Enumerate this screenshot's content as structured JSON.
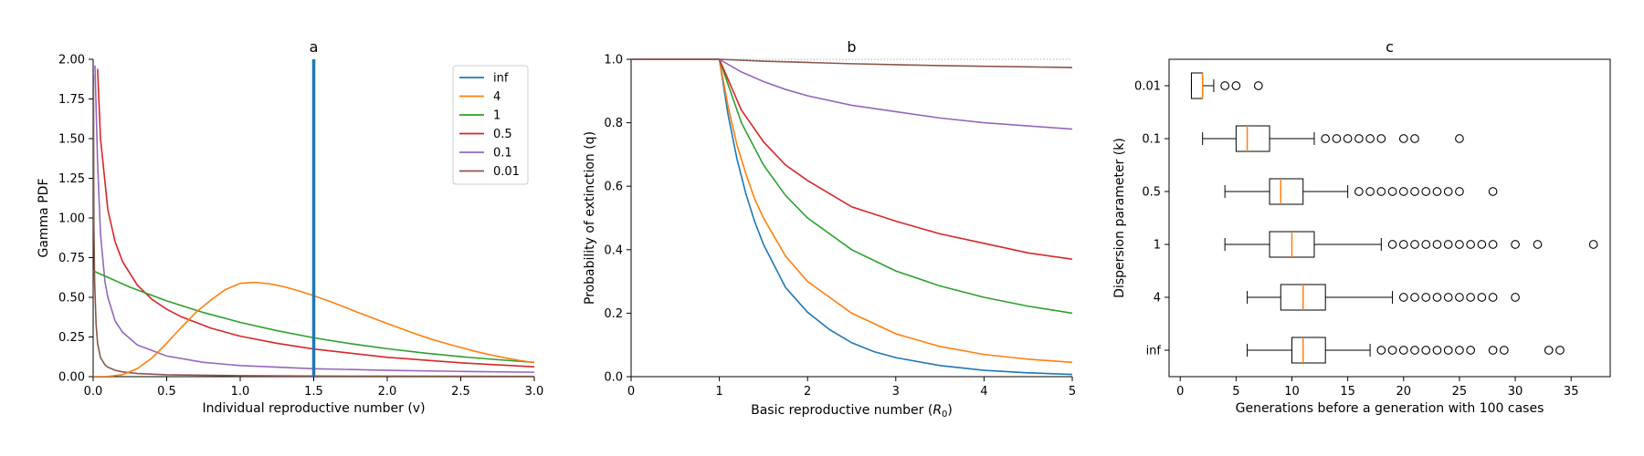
{
  "colors": {
    "inf": "#1f77b4",
    "4": "#ff7f0e",
    "1": "#2ca02c",
    "0.5": "#d62728",
    "0.1": "#9467bd",
    "0.01": "#8c564b",
    "median": "#ff7f0e",
    "reference_line": "#b0b0b0"
  },
  "chart_data": [
    {
      "id": "a",
      "type": "line",
      "title": "a",
      "xlabel": "Individual reproductive number (v)",
      "ylabel": "Gamma PDF",
      "xlim": [
        0,
        3
      ],
      "ylim": [
        0,
        2
      ],
      "xticks": [
        "0.0",
        "0.5",
        "1.0",
        "1.5",
        "2.0",
        "2.5",
        "3.0"
      ],
      "yticks": [
        "0.00",
        "0.25",
        "0.50",
        "0.75",
        "1.00",
        "1.25",
        "1.50",
        "1.75",
        "2.00"
      ],
      "legend_position": "top-right",
      "series": [
        {
          "name": "inf",
          "kind": "vertical_line",
          "x": 1.5
        },
        {
          "name": "4",
          "x": [
            0,
            0.1,
            0.2,
            0.3,
            0.4,
            0.5,
            0.6,
            0.7,
            0.8,
            0.9,
            1.0,
            1.1,
            1.2,
            1.3,
            1.4,
            1.5,
            1.6,
            1.7,
            1.8,
            1.9,
            2.0,
            2.1,
            2.2,
            2.3,
            2.4,
            2.5,
            2.6,
            2.7,
            2.8,
            2.9,
            3.0
          ],
          "y": [
            0,
            0.0009,
            0.0125,
            0.05,
            0.118,
            0.21,
            0.311,
            0.406,
            0.483,
            0.549,
            0.588,
            0.594,
            0.585,
            0.566,
            0.54,
            0.51,
            0.478,
            0.442,
            0.405,
            0.37,
            0.335,
            0.301,
            0.267,
            0.236,
            0.209,
            0.184,
            0.159,
            0.138,
            0.119,
            0.102,
            0.089
          ]
        },
        {
          "name": "1",
          "x": [
            0,
            0.25,
            0.5,
            0.75,
            1.0,
            1.25,
            1.5,
            1.75,
            2.0,
            2.25,
            2.5,
            2.75,
            3.0
          ],
          "y": [
            0.667,
            0.564,
            0.478,
            0.404,
            0.342,
            0.29,
            0.245,
            0.208,
            0.176,
            0.149,
            0.126,
            0.107,
            0.09
          ]
        },
        {
          "name": "0.5",
          "x": [
            0.03,
            0.05,
            0.1,
            0.15,
            0.2,
            0.3,
            0.4,
            0.5,
            0.6,
            0.8,
            1.0,
            1.25,
            1.5,
            2.0,
            2.5,
            3.0
          ],
          "y": [
            1.94,
            1.5,
            1.05,
            0.848,
            0.725,
            0.577,
            0.487,
            0.425,
            0.377,
            0.306,
            0.255,
            0.21,
            0.174,
            0.122,
            0.087,
            0.062
          ]
        },
        {
          "name": "0.1",
          "x": [
            0.012,
            0.02,
            0.03,
            0.05,
            0.08,
            0.1,
            0.15,
            0.2,
            0.3,
            0.5,
            0.75,
            1.0,
            1.5,
            2.0,
            2.5,
            3.0
          ],
          "y": [
            1.96,
            1.7,
            1.35,
            0.9,
            0.6,
            0.5,
            0.35,
            0.28,
            0.2,
            0.13,
            0.09,
            0.07,
            0.05,
            0.04,
            0.033,
            0.028
          ]
        },
        {
          "name": "0.01",
          "x": [
            0.002,
            0.005,
            0.01,
            0.02,
            0.03,
            0.05,
            0.08,
            0.1,
            0.15,
            0.2,
            0.3,
            0.5,
            1.0,
            1.5,
            2.0,
            2.5,
            3.0
          ],
          "y": [
            1.9,
            0.95,
            0.6,
            0.33,
            0.21,
            0.12,
            0.075,
            0.06,
            0.04,
            0.03,
            0.02,
            0.012,
            0.006,
            0.004,
            0.003,
            0.0025,
            0.002
          ]
        }
      ]
    },
    {
      "id": "b",
      "type": "line",
      "title": "b",
      "xlabel_prefix": "Basic reproductive number (",
      "xlabel_symbol": "R",
      "xlabel_sub": "0",
      "xlabel_suffix": ")",
      "ylabel": "Probability of extinction (q)",
      "xlim": [
        0,
        5
      ],
      "ylim": [
        0,
        1
      ],
      "xticks": [
        "0",
        "1",
        "2",
        "3",
        "4",
        "5"
      ],
      "yticks": [
        "0.0",
        "0.2",
        "0.4",
        "0.6",
        "0.8",
        "1.0"
      ],
      "reference_line_y": 1.0,
      "series": [
        {
          "name": "inf",
          "x": [
            0,
            1.0,
            1.1,
            1.2,
            1.3,
            1.4,
            1.5,
            1.75,
            2.0,
            2.25,
            2.5,
            2.75,
            3.0,
            3.5,
            4.0,
            4.5,
            5.0
          ],
          "y": [
            1,
            1,
            0.824,
            0.686,
            0.577,
            0.489,
            0.417,
            0.281,
            0.203,
            0.148,
            0.107,
            0.079,
            0.06,
            0.035,
            0.02,
            0.012,
            0.007
          ]
        },
        {
          "name": "4",
          "x": [
            0,
            1.0,
            1.1,
            1.2,
            1.3,
            1.4,
            1.5,
            1.75,
            2.0,
            2.5,
            3.0,
            3.5,
            4.0,
            4.5,
            5.0
          ],
          "y": [
            1,
            1,
            0.85,
            0.73,
            0.64,
            0.56,
            0.5,
            0.38,
            0.3,
            0.2,
            0.135,
            0.095,
            0.07,
            0.055,
            0.045
          ]
        },
        {
          "name": "1",
          "x": [
            0,
            1.0,
            1.25,
            1.5,
            1.75,
            2.0,
            2.5,
            3.0,
            3.5,
            4.0,
            4.5,
            5.0
          ],
          "y": [
            1,
            1,
            0.8,
            0.667,
            0.571,
            0.5,
            0.4,
            0.333,
            0.286,
            0.25,
            0.222,
            0.2
          ]
        },
        {
          "name": "0.5",
          "x": [
            0,
            1.0,
            1.25,
            1.5,
            1.75,
            2.0,
            2.5,
            3.0,
            3.5,
            4.0,
            4.5,
            5.0
          ],
          "y": [
            1,
            1,
            0.84,
            0.74,
            0.667,
            0.618,
            0.535,
            0.49,
            0.45,
            0.42,
            0.39,
            0.37
          ]
        },
        {
          "name": "0.1",
          "x": [
            0,
            1.0,
            1.25,
            1.5,
            1.75,
            2.0,
            2.5,
            3.0,
            3.5,
            4.0,
            4.5,
            5.0
          ],
          "y": [
            1,
            1,
            0.96,
            0.93,
            0.905,
            0.885,
            0.855,
            0.835,
            0.815,
            0.8,
            0.79,
            0.78
          ]
        },
        {
          "name": "0.01",
          "x": [
            0,
            1.0,
            1.5,
            2.0,
            2.5,
            3.0,
            3.5,
            4.0,
            4.5,
            5.0
          ],
          "y": [
            1,
            1,
            0.994,
            0.99,
            0.986,
            0.983,
            0.98,
            0.978,
            0.976,
            0.974
          ]
        }
      ]
    },
    {
      "id": "c",
      "type": "box",
      "title": "c",
      "xlabel": "Generations before a generation with 100 cases",
      "ylabel": "Dispersion parameter (k)",
      "xlim": [
        -1,
        38.5
      ],
      "xticks": [
        0,
        5,
        10,
        15,
        20,
        25,
        30,
        35
      ],
      "categories": [
        "0.01",
        "0.1",
        "0.5",
        "1",
        "4",
        "inf"
      ],
      "boxes": [
        {
          "label": "0.01",
          "whislo": 1,
          "q1": 1,
          "med": 2,
          "q3": 2,
          "whishi": 3,
          "fliers": [
            4,
            5,
            7
          ]
        },
        {
          "label": "0.1",
          "whislo": 2,
          "q1": 5,
          "med": 6,
          "q3": 8,
          "whishi": 12,
          "fliers": [
            13,
            14,
            15,
            16,
            17,
            18,
            20,
            21,
            25
          ]
        },
        {
          "label": "0.5",
          "whislo": 4,
          "q1": 8,
          "med": 9,
          "q3": 11,
          "whishi": 15,
          "fliers": [
            16,
            17,
            18,
            19,
            20,
            21,
            22,
            23,
            24,
            25,
            28
          ]
        },
        {
          "label": "1",
          "whislo": 4,
          "q1": 8,
          "med": 10,
          "q3": 12,
          "whishi": 18,
          "fliers": [
            19,
            20,
            21,
            22,
            23,
            24,
            25,
            26,
            27,
            28,
            30,
            32,
            37
          ]
        },
        {
          "label": "4",
          "whislo": 6,
          "q1": 9,
          "med": 11,
          "q3": 13,
          "whishi": 19,
          "fliers": [
            20,
            21,
            22,
            23,
            24,
            25,
            26,
            27,
            28,
            30
          ]
        },
        {
          "label": "inf",
          "whislo": 6,
          "q1": 10,
          "med": 11,
          "q3": 13,
          "whishi": 17,
          "fliers": [
            18,
            19,
            20,
            21,
            22,
            23,
            24,
            25,
            26,
            28,
            29,
            33,
            34
          ]
        }
      ]
    }
  ]
}
